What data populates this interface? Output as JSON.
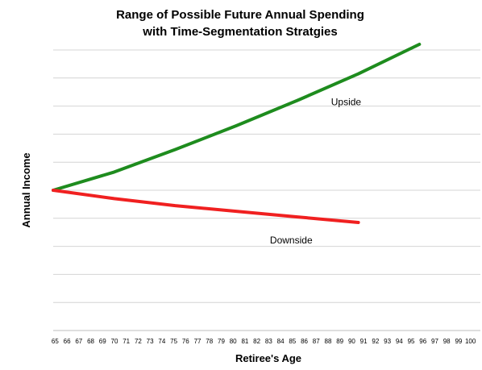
{
  "chart_data": {
    "type": "line",
    "title": [
      "Range of Possible Future Annual Spending",
      "with Time-Segmentation Stratgies"
    ],
    "xlabel": "Retiree's Age",
    "ylabel": "Annual Income",
    "x_ticks": [
      65,
      66,
      67,
      68,
      69,
      70,
      71,
      72,
      73,
      74,
      75,
      76,
      77,
      78,
      79,
      80,
      81,
      82,
      83,
      84,
      85,
      86,
      87,
      88,
      89,
      90,
      91,
      92,
      93,
      94,
      95,
      96,
      97,
      98,
      99,
      100
    ],
    "xlim": [
      65,
      100
    ],
    "ylim": [
      0,
      10
    ],
    "grid": true,
    "y_tick_labels_shown": false,
    "series": [
      {
        "name": "Upside",
        "color": "#1e8c1e",
        "x": [
          65,
          70,
          75,
          80,
          85,
          90,
          95
        ],
        "y": [
          5.0,
          5.65,
          6.45,
          7.3,
          8.2,
          9.15,
          10.2
        ]
      },
      {
        "name": "Downside",
        "color": "#f02020",
        "x": [
          65,
          70,
          75,
          80,
          85,
          90
        ],
        "y": [
          5.0,
          4.7,
          4.45,
          4.25,
          4.05,
          3.85
        ]
      }
    ],
    "annotations": [
      {
        "text": "Upside",
        "series": "Upside"
      },
      {
        "text": "Downside",
        "series": "Downside"
      }
    ]
  }
}
